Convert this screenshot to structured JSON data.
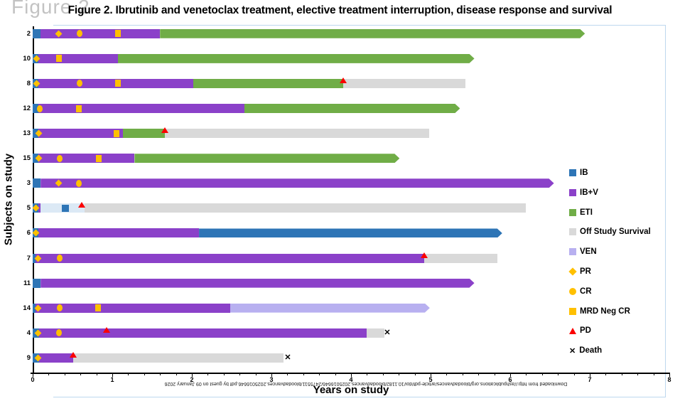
{
  "watermark": "Figure 2",
  "title": "Figure 2. Ibrutinib and venetoclax treatment, elective treatment interruption, disease response and survival",
  "footer_note": "Downloaded from http://ashpublications.org/bloodadvances/article-pdf/doi/10.1182/bloodadvances.2025016646/2475511/bloodadvances.2025016646.pdf by guest on 09 January 2026",
  "colors": {
    "IB": "#2E75B6",
    "IBV": "#8B41C9",
    "ETI": "#70AD47",
    "OSS": "#D9D9D9",
    "VEN": "#B8B0F0",
    "LOW": "#DCE9F5",
    "marker": "#FFC000",
    "PD": "#FB0000",
    "death": "#000000",
    "frame": "#BDD7EE"
  },
  "legend": [
    {
      "label": "IB",
      "swatch": "square",
      "color_key": "IB"
    },
    {
      "label": "IB+V",
      "swatch": "square",
      "color_key": "IBV"
    },
    {
      "label": "ETI",
      "swatch": "square",
      "color_key": "ETI"
    },
    {
      "label": "Off Study Survival",
      "swatch": "square",
      "color_key": "OSS"
    },
    {
      "label": "VEN",
      "swatch": "square",
      "color_key": "VEN"
    },
    {
      "label": "PR",
      "swatch": "diamond",
      "color_key": "marker"
    },
    {
      "label": "CR",
      "swatch": "circle",
      "color_key": "marker"
    },
    {
      "label": "MRD Neg CR",
      "swatch": "square",
      "color_key": "marker"
    },
    {
      "label": "PD",
      "swatch": "triangle",
      "color_key": "PD"
    },
    {
      "label": "Death",
      "swatch": "x",
      "color_key": "death"
    }
  ],
  "chart_data": {
    "type": "bar",
    "subtype": "swimmer-plot",
    "title": "Figure 2. Ibrutinib and venetoclax treatment, elective treatment interruption, disease response and survival",
    "xlabel": "Years on study",
    "ylabel": "Subjects on study",
    "xlim": [
      0,
      8
    ],
    "x_major_ticks": [
      0,
      1,
      2,
      3,
      4,
      5,
      6,
      7,
      8
    ],
    "x_minor_step": 0.2,
    "grid": false,
    "legend_position": "right",
    "segment_types": {
      "IB": "Ibrutinib",
      "IBV": "Ibrutinib + Venetoclax",
      "ETI": "Elective treatment interruption",
      "OSS": "Off Study Survival",
      "VEN": "Venetoclax",
      "LOW": "pale segment (subject 5)"
    },
    "subjects": [
      {
        "id": "2",
        "arrow_end": true,
        "segments": [
          {
            "type": "IB",
            "start": 0,
            "end": 0.1
          },
          {
            "type": "IBV",
            "start": 0.1,
            "end": 1.6
          },
          {
            "type": "ETI",
            "start": 1.6,
            "end": 6.94
          }
        ],
        "markers": [
          {
            "type": "PR",
            "x": 0.33
          },
          {
            "type": "CR",
            "x": 0.59
          },
          {
            "type": "MRD",
            "x": 1.07
          }
        ],
        "death_x": null
      },
      {
        "id": "10",
        "arrow_end": true,
        "segments": [
          {
            "type": "IB",
            "start": 0,
            "end": 0.07
          },
          {
            "type": "IBV",
            "start": 0.07,
            "end": 1.07
          },
          {
            "type": "ETI",
            "start": 1.07,
            "end": 5.55
          }
        ],
        "markers": [
          {
            "type": "PR",
            "x": 0.05
          },
          {
            "type": "MRD",
            "x": 0.33
          }
        ],
        "death_x": null
      },
      {
        "id": "8",
        "arrow_end": false,
        "segments": [
          {
            "type": "IB",
            "start": 0,
            "end": 0.07
          },
          {
            "type": "IBV",
            "start": 0.07,
            "end": 2.02
          },
          {
            "type": "ETI",
            "start": 2.02,
            "end": 3.9
          },
          {
            "type": "OSS",
            "start": 3.9,
            "end": 5.44
          }
        ],
        "markers": [
          {
            "type": "PR",
            "x": 0.05
          },
          {
            "type": "CR",
            "x": 0.59
          },
          {
            "type": "MRD",
            "x": 1.07
          },
          {
            "type": "PD",
            "x": 3.9
          }
        ],
        "death_x": null
      },
      {
        "id": "12",
        "arrow_end": true,
        "segments": [
          {
            "type": "IB",
            "start": 0,
            "end": 0.07
          },
          {
            "type": "IBV",
            "start": 0.07,
            "end": 2.66
          },
          {
            "type": "ETI",
            "start": 2.66,
            "end": 5.37
          }
        ],
        "markers": [
          {
            "type": "CR",
            "x": 0.09
          },
          {
            "type": "MRD",
            "x": 0.58
          }
        ],
        "death_x": null
      },
      {
        "id": "13",
        "arrow_end": false,
        "segments": [
          {
            "type": "IB",
            "start": 0,
            "end": 0.07
          },
          {
            "type": "IBV",
            "start": 0.07,
            "end": 1.13
          },
          {
            "type": "ETI",
            "start": 1.13,
            "end": 1.66
          },
          {
            "type": "OSS",
            "start": 1.66,
            "end": 4.98
          }
        ],
        "markers": [
          {
            "type": "PR",
            "x": 0.08
          },
          {
            "type": "MRD",
            "x": 1.05
          },
          {
            "type": "PD",
            "x": 1.66
          }
        ],
        "death_x": null
      },
      {
        "id": "15",
        "arrow_end": true,
        "segments": [
          {
            "type": "IB",
            "start": 0,
            "end": 0.07
          },
          {
            "type": "IBV",
            "start": 0.07,
            "end": 1.28
          },
          {
            "type": "ETI",
            "start": 1.28,
            "end": 4.61
          }
        ],
        "markers": [
          {
            "type": "PR",
            "x": 0.08
          },
          {
            "type": "CR",
            "x": 0.34
          },
          {
            "type": "MRD",
            "x": 0.83
          }
        ],
        "death_x": null
      },
      {
        "id": "3",
        "arrow_end": true,
        "segments": [
          {
            "type": "IB",
            "start": 0,
            "end": 0.1
          },
          {
            "type": "IBV",
            "start": 0.1,
            "end": 6.55
          }
        ],
        "markers": [
          {
            "type": "PR",
            "x": 0.33
          },
          {
            "type": "CR",
            "x": 0.58
          }
        ],
        "death_x": null
      },
      {
        "id": "5",
        "arrow_end": false,
        "segments": [
          {
            "type": "IB",
            "start": 0,
            "end": 0.07
          },
          {
            "type": "IBV",
            "start": 0.07,
            "end": 0.1
          },
          {
            "type": "LOW",
            "start": 0.1,
            "end": 0.65
          },
          {
            "type": "OSS",
            "start": 0.65,
            "end": 6.2
          }
        ],
        "markers": [
          {
            "type": "PR",
            "x": 0.04
          },
          {
            "type": "IBSQ",
            "x": 0.41
          },
          {
            "type": "PD",
            "x": 0.62
          }
        ],
        "death_x": null
      },
      {
        "id": "6",
        "arrow_end": true,
        "segments": [
          {
            "type": "IB",
            "start": 0,
            "end": 0.07
          },
          {
            "type": "IBV",
            "start": 0.07,
            "end": 2.09
          },
          {
            "type": "IB",
            "start": 2.09,
            "end": 5.9
          }
        ],
        "markers": [
          {
            "type": "PR",
            "x": 0.04
          }
        ],
        "death_x": null
      },
      {
        "id": "7",
        "arrow_end": false,
        "segments": [
          {
            "type": "IB",
            "start": 0,
            "end": 0.04
          },
          {
            "type": "IBV",
            "start": 0.04,
            "end": 4.92
          },
          {
            "type": "OSS",
            "start": 4.92,
            "end": 5.84
          }
        ],
        "markers": [
          {
            "type": "PR",
            "x": 0.07
          },
          {
            "type": "CR",
            "x": 0.34
          },
          {
            "type": "PD",
            "x": 4.92
          }
        ],
        "death_x": null
      },
      {
        "id": "11",
        "arrow_end": true,
        "segments": [
          {
            "type": "IB",
            "start": 0,
            "end": 0.1
          },
          {
            "type": "IBV",
            "start": 0.1,
            "end": 5.55
          }
        ],
        "markers": [],
        "death_x": null
      },
      {
        "id": "14",
        "arrow_end": true,
        "segments": [
          {
            "type": "IB",
            "start": 0,
            "end": 0.04
          },
          {
            "type": "IBV",
            "start": 0.04,
            "end": 2.48
          },
          {
            "type": "VEN",
            "start": 2.48,
            "end": 4.99
          }
        ],
        "markers": [
          {
            "type": "PR",
            "x": 0.07
          },
          {
            "type": "CR",
            "x": 0.34
          },
          {
            "type": "MRD",
            "x": 0.82
          }
        ],
        "death_x": null
      },
      {
        "id": "4",
        "arrow_end": false,
        "segments": [
          {
            "type": "IB",
            "start": 0,
            "end": 0.08
          },
          {
            "type": "IBV",
            "start": 0.08,
            "end": 4.2
          },
          {
            "type": "OSS",
            "start": 4.2,
            "end": 4.42
          }
        ],
        "markers": [
          {
            "type": "PR",
            "x": 0.07
          },
          {
            "type": "CR",
            "x": 0.33
          },
          {
            "type": "PD",
            "x": 0.93
          }
        ],
        "death_x": 4.45
      },
      {
        "id": "9",
        "arrow_end": false,
        "segments": [
          {
            "type": "IB",
            "start": 0,
            "end": 0.08
          },
          {
            "type": "IBV",
            "start": 0.08,
            "end": 0.51
          },
          {
            "type": "OSS",
            "start": 0.51,
            "end": 3.15
          }
        ],
        "markers": [
          {
            "type": "PR",
            "x": 0.07
          },
          {
            "type": "PD",
            "x": 0.51
          }
        ],
        "death_x": 3.2
      }
    ]
  }
}
